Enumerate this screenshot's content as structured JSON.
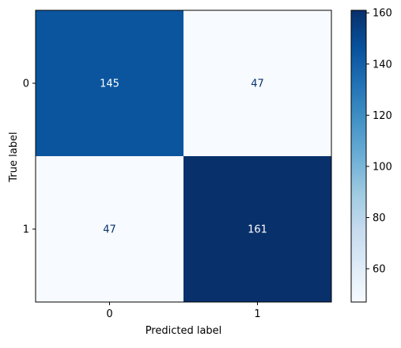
{
  "chart_data": {
    "type": "heatmap",
    "title": "",
    "xlabel": "Predicted label",
    "ylabel": "True label",
    "x_categories": [
      "0",
      "1"
    ],
    "y_categories": [
      "0",
      "1"
    ],
    "matrix": [
      [
        145,
        47
      ],
      [
        47,
        161
      ]
    ],
    "colormap": "Blues",
    "color_low": "#f7fbff",
    "color_high": "#08306b",
    "text_color_on_light": "#08306b",
    "text_color_on_dark": "#ffffff",
    "colorbar": {
      "min": 47,
      "max": 161,
      "ticks": [
        60,
        80,
        100,
        120,
        140,
        160
      ]
    },
    "grid": false,
    "legend": "colorbar-right"
  }
}
